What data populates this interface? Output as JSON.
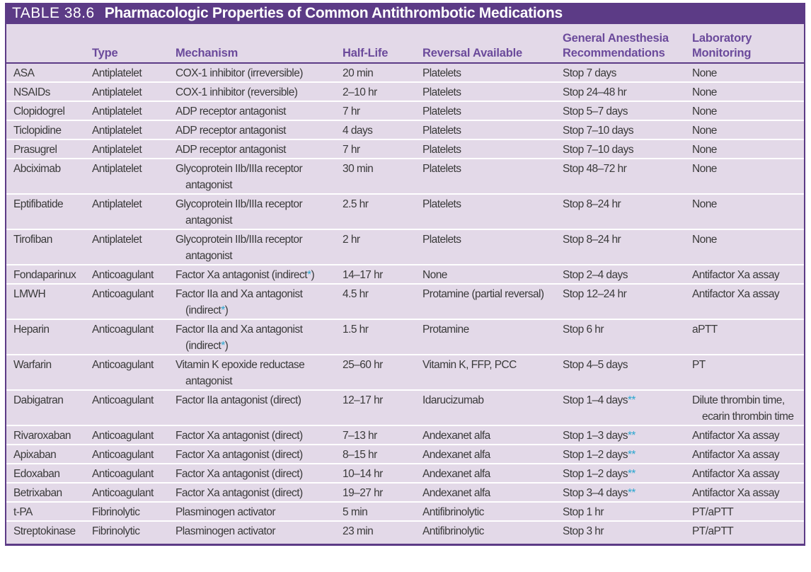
{
  "table": {
    "label": "TABLE 38.6",
    "title": "Pharmacologic Properties of Common Antithrombotic Medications",
    "columns": [
      "",
      "Type",
      "Mechanism",
      "Half-Life",
      "Reversal Available",
      "General Anesthesia\nRecommendations",
      "Laboratory\nMonitoring"
    ],
    "rows": [
      [
        "ASA",
        "Antiplatelet",
        "COX-1 inhibitor (irreversible)",
        "20 min",
        "Platelets",
        "Stop 7 days",
        "None"
      ],
      [
        "NSAIDs",
        "Antiplatelet",
        "COX-1 inhibitor (reversible)",
        "2–10 hr",
        "Platelets",
        "Stop 24–48 hr",
        "None"
      ],
      [
        "Clopidogrel",
        "Antiplatelet",
        "ADP receptor antagonist",
        "7 hr",
        "Platelets",
        "Stop 5–7 days",
        "None"
      ],
      [
        "Ticlopidine",
        "Antiplatelet",
        "ADP receptor antagonist",
        "4 days",
        "Platelets",
        "Stop 7–10 days",
        "None"
      ],
      [
        "Prasugrel",
        "Antiplatelet",
        "ADP receptor antagonist",
        "7 hr",
        "Platelets",
        "Stop 7–10 days",
        "None"
      ],
      [
        "Abciximab",
        "Antiplatelet",
        "Glycoprotein IIb/IIIa receptor\nantagonist",
        "30 min",
        "Platelets",
        "Stop 48–72 hr",
        "None"
      ],
      [
        "Eptifibatide",
        "Antiplatelet",
        "Glycoprotein IIb/IIIa receptor\nantagonist",
        "2.5 hr",
        "Platelets",
        "Stop 8–24 hr",
        "None"
      ],
      [
        "Tirofiban",
        "Antiplatelet",
        "Glycoprotein IIb/IIIa receptor\nantagonist",
        "2 hr",
        "Platelets",
        "Stop 8–24 hr",
        "None"
      ],
      [
        "Fondaparinux",
        "Anticoagulant",
        "Factor Xa antagonist (indirect*)",
        "14–17 hr",
        "None",
        "Stop 2–4 days",
        "Antifactor Xa assay"
      ],
      [
        "LMWH",
        "Anticoagulant",
        "Factor IIa and Xa antagonist\n(indirect*)",
        "4.5 hr",
        "Protamine (partial reversal)",
        "Stop 12–24 hr",
        "Antifactor Xa assay"
      ],
      [
        "Heparin",
        "Anticoagulant",
        "Factor IIa and Xa antagonist\n(indirect*)",
        "1.5 hr",
        "Protamine",
        "Stop 6 hr",
        "aPTT"
      ],
      [
        "Warfarin",
        "Anticoagulant",
        "Vitamin K epoxide reductase\nantagonist",
        "25–60 hr",
        "Vitamin K, FFP, PCC",
        "Stop 4–5 days",
        "PT"
      ],
      [
        "Dabigatran",
        "Anticoagulant",
        "Factor IIa antagonist (direct)",
        "12–17 hr",
        "Idarucizumab",
        "Stop 1–4 days**",
        "Dilute thrombin time,\necarin thrombin time"
      ],
      [
        "Rivaroxaban",
        "Anticoagulant",
        "Factor Xa antagonist (direct)",
        "7–13 hr",
        "Andexanet alfa",
        "Stop 1–3 days**",
        "Antifactor Xa assay"
      ],
      [
        "Apixaban",
        "Anticoagulant",
        "Factor Xa antagonist (direct)",
        "8–15 hr",
        "Andexanet alfa",
        "Stop 1–2 days**",
        "Antifactor Xa assay"
      ],
      [
        "Edoxaban",
        "Anticoagulant",
        "Factor Xa antagonist (direct)",
        "10–14 hr",
        "Andexanet alfa",
        "Stop 1–2 days**",
        "Antifactor Xa assay"
      ],
      [
        "Betrixaban",
        "Anticoagulant",
        "Factor Xa antagonist (direct)",
        "19–27 hr",
        "Andexanet alfa",
        "Stop 3–4 days**",
        "Antifactor Xa assay"
      ],
      [
        "t-PA",
        "Fibrinolytic",
        "Plasminogen activator",
        "5 min",
        "Antifibrinolytic",
        "Stop 1 hr",
        "PT/aPTT"
      ],
      [
        "Streptokinase",
        "Fibrinolytic",
        "Plasminogen activator",
        "23 min",
        "Antifibrinolytic",
        "Stop 3 hr",
        "PT/aPTT"
      ]
    ]
  },
  "colors": {
    "header_bg": "#5c3b86",
    "body_bg": "#e3d9e8",
    "heading_text": "#6b4a9b",
    "footnote_mark": "#2aa6cf"
  }
}
